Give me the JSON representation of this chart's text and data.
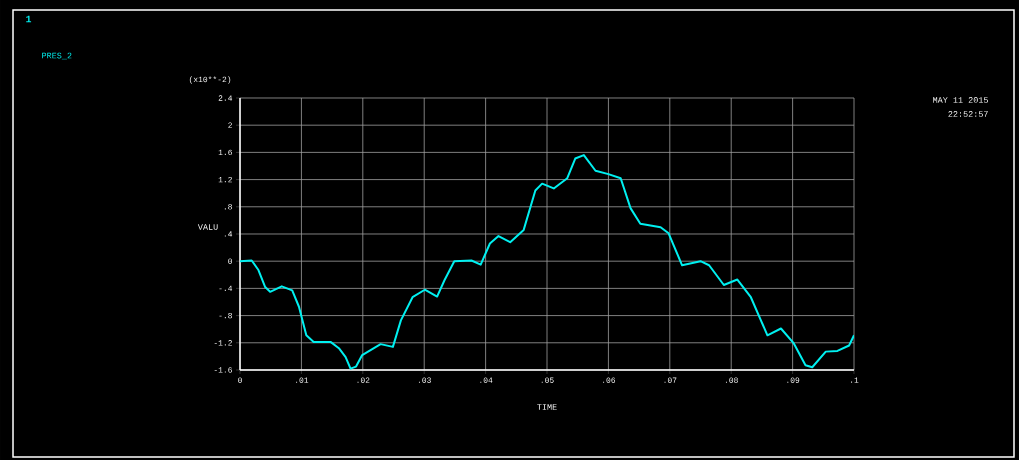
{
  "chart_data": {
    "type": "line",
    "xlabel": "TIME",
    "ylabel": "VALU",
    "annotations": [
      "1",
      "(x10**-2)",
      "MAY 11 2015",
      "22:52:57"
    ],
    "x": [
      0,
      0.0019,
      0.003,
      0.0041,
      0.0049,
      0.0068,
      0.0085,
      0.0096,
      0.0108,
      0.012,
      0.0148,
      0.0161,
      0.0172,
      0.018,
      0.0189,
      0.0199,
      0.0229,
      0.0249,
      0.0262,
      0.0281,
      0.0301,
      0.0321,
      0.0333,
      0.0349,
      0.0377,
      0.0392,
      0.0407,
      0.0421,
      0.044,
      0.0462,
      0.0481,
      0.0492,
      0.0511,
      0.0533,
      0.0546,
      0.056,
      0.0579,
      0.06,
      0.062,
      0.0636,
      0.0652,
      0.0685,
      0.0698,
      0.072,
      0.075,
      0.0764,
      0.0788,
      0.081,
      0.0832,
      0.0859,
      0.0881,
      0.0902,
      0.0921,
      0.0932,
      0.0954,
      0.0973,
      0.0992,
      0.1
    ],
    "series": [
      {
        "name": "PRES_2",
        "color": "#00f0f0",
        "values": [
          0,
          0.01,
          -0.13,
          -0.38,
          -0.45,
          -0.37,
          -0.43,
          -0.67,
          -1.09,
          -1.19,
          -1.19,
          -1.28,
          -1.41,
          -1.58,
          -1.55,
          -1.38,
          -1.22,
          -1.26,
          -0.87,
          -0.53,
          -0.42,
          -0.52,
          -0.28,
          0,
          0.01,
          -0.05,
          0.26,
          0.37,
          0.28,
          0.46,
          1.04,
          1.14,
          1.07,
          1.22,
          1.51,
          1.56,
          1.33,
          1.28,
          1.22,
          0.78,
          0.55,
          0.5,
          0.41,
          -0.06,
          0,
          -0.06,
          -0.35,
          -0.27,
          -0.53,
          -1.09,
          -0.99,
          -1.21,
          -1.53,
          -1.56,
          -1.33,
          -1.32,
          -1.24,
          -1.09
        ]
      }
    ],
    "xlim": [
      0,
      0.1
    ],
    "ylim": [
      -1.6,
      2.4
    ],
    "xticks": [
      0,
      {
        "value": 0.01,
        "label": ".01"
      },
      {
        "value": 0.02,
        "label": ".02"
      },
      {
        "value": 0.03,
        "label": ".03"
      },
      {
        "value": 0.04,
        "label": ".04"
      },
      {
        "value": 0.05,
        "label": ".05"
      },
      {
        "value": 0.06,
        "label": ".06"
      },
      {
        "value": 0.07,
        "label": ".07"
      },
      {
        "value": 0.08,
        "label": ".08"
      },
      {
        "value": 0.09,
        "label": ".09"
      },
      {
        "value": 0.1,
        "label": ".1"
      }
    ],
    "yticks": [
      {
        "value": -1.6,
        "label": "-1.6"
      },
      {
        "value": -1.2,
        "label": "-1.2"
      },
      {
        "value": -0.8,
        "label": "-.8"
      },
      {
        "value": -0.4,
        "label": "-.4"
      },
      0,
      {
        "value": 0.4,
        "label": ".4"
      },
      {
        "value": 0.8,
        "label": ".8"
      },
      1.2,
      1.6,
      2,
      2.4
    ],
    "grid": true,
    "legend": "top left",
    "marker": "none",
    "line_style": "solid"
  }
}
